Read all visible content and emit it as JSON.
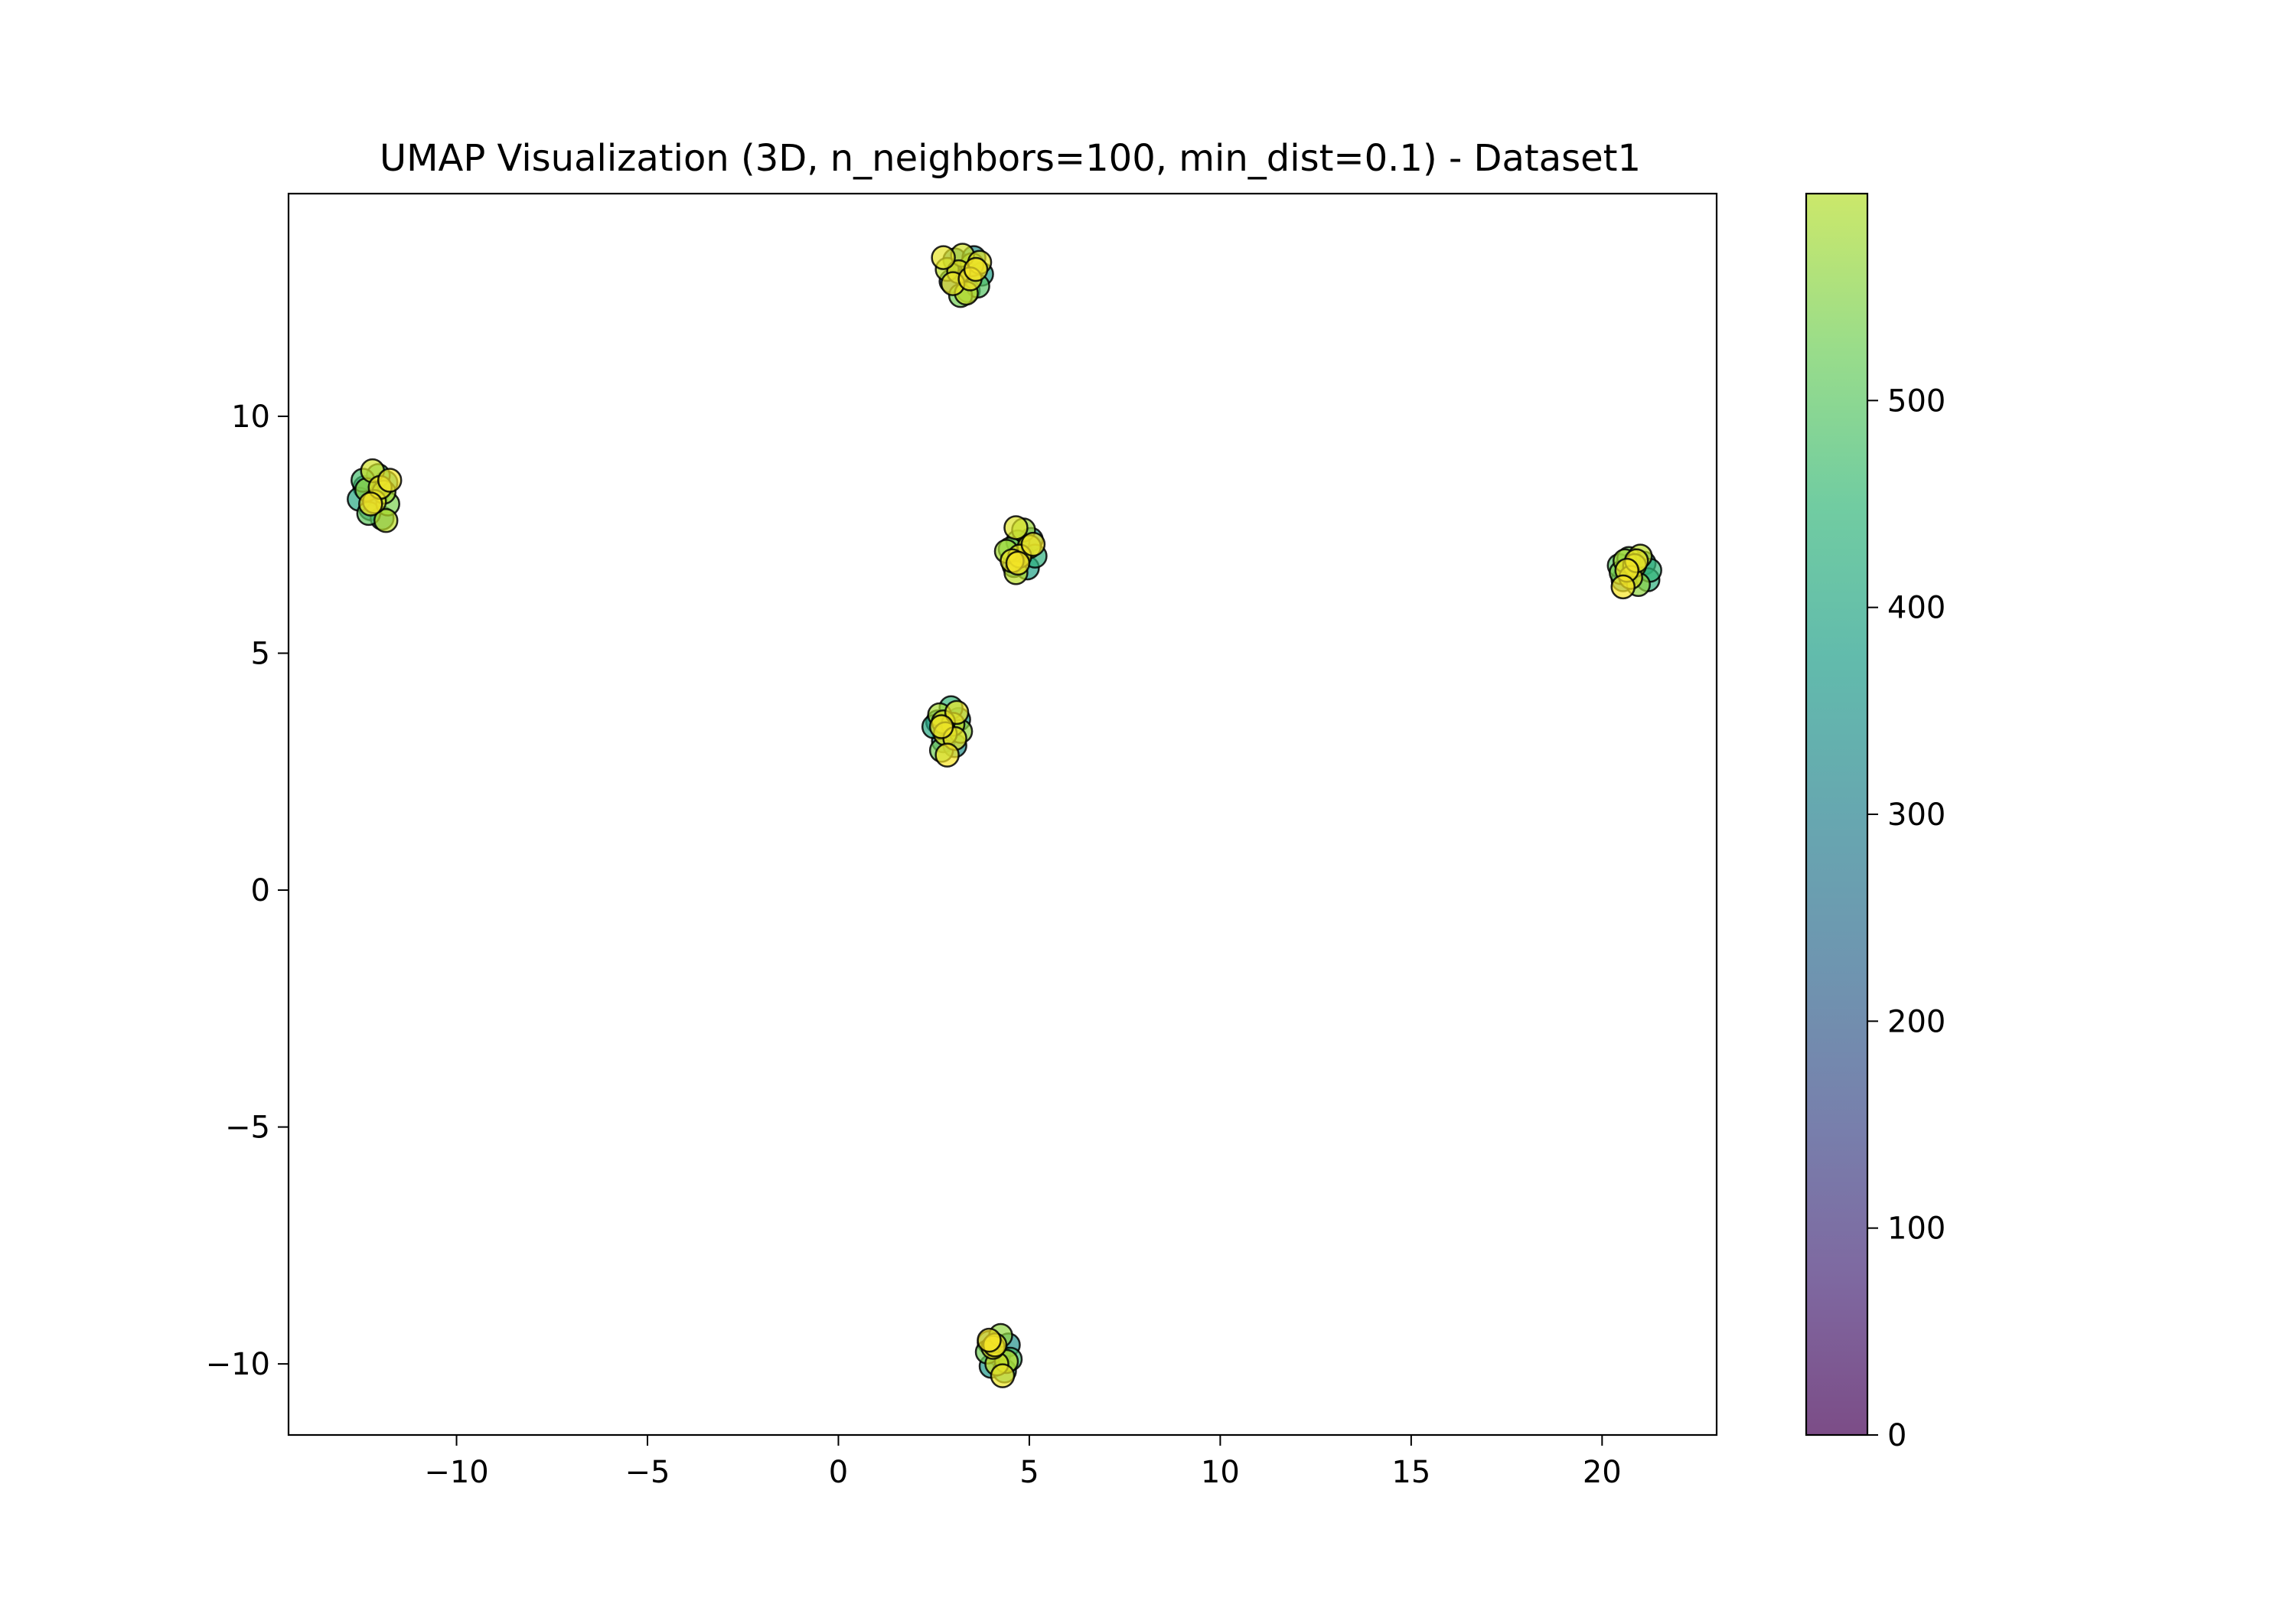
{
  "chart_data": {
    "type": "scatter",
    "title": "UMAP Visualization (3D, n_neighbors=100, min_dist=0.1) - Dataset1",
    "xlabel": "",
    "ylabel": "",
    "xlim": [
      -14.4,
      23.0
    ],
    "ylim": [
      -11.5,
      14.7
    ],
    "x_ticks": [
      -10,
      -5,
      0,
      5,
      10,
      15,
      20
    ],
    "x_tick_labels": [
      "−10",
      "−5",
      "0",
      "5",
      "10",
      "15",
      "20"
    ],
    "y_ticks": [
      -10,
      -5,
      0,
      5,
      10
    ],
    "y_tick_labels": [
      "−10",
      "−5",
      "0",
      "5",
      "10"
    ],
    "grid": false,
    "colormap": "viridis",
    "colorbar": {
      "min": 0,
      "max": 600,
      "ticks": [
        0,
        100,
        200,
        300,
        400,
        500
      ],
      "tick_labels": [
        "0",
        "100",
        "200",
        "300",
        "400",
        "500"
      ]
    },
    "marker": {
      "edge_color": "#000000",
      "alpha": 0.7
    },
    "clusters": [
      {
        "center_x": 3.3,
        "center_y": 13.0
      },
      {
        "center_x": -12.1,
        "center_y": 8.3
      },
      {
        "center_x": 4.8,
        "center_y": 7.1
      },
      {
        "center_x": 20.8,
        "center_y": 6.7
      },
      {
        "center_x": 2.9,
        "center_y": 3.4
      },
      {
        "center_x": 4.2,
        "center_y": -9.8
      }
    ],
    "points": [
      {
        "x": 3.3,
        "y": 13.05,
        "c": 120
      },
      {
        "x": 3.05,
        "y": 13.3,
        "c": 260
      },
      {
        "x": 3.55,
        "y": 13.35,
        "c": 300
      },
      {
        "x": 3.75,
        "y": 13.0,
        "c": 340
      },
      {
        "x": 2.95,
        "y": 12.85,
        "c": 220
      },
      {
        "x": 3.4,
        "y": 12.65,
        "c": 380
      },
      {
        "x": 3.65,
        "y": 12.75,
        "c": 440
      },
      {
        "x": 3.2,
        "y": 12.55,
        "c": 470
      },
      {
        "x": 3.5,
        "y": 13.2,
        "c": 510
      },
      {
        "x": 2.85,
        "y": 13.1,
        "c": 540
      },
      {
        "x": 3.25,
        "y": 13.4,
        "c": 560
      },
      {
        "x": 3.7,
        "y": 13.25,
        "c": 575
      },
      {
        "x": 3.0,
        "y": 12.8,
        "c": 585
      },
      {
        "x": 3.45,
        "y": 12.9,
        "c": 590
      },
      {
        "x": 3.6,
        "y": 13.1,
        "c": 595
      },
      {
        "x": 2.75,
        "y": 13.35,
        "c": 580
      },
      {
        "x": 3.15,
        "y": 13.05,
        "c": 570
      },
      {
        "x": 3.35,
        "y": 12.6,
        "c": 555
      },
      {
        "x": -12.1,
        "y": 8.35,
        "c": 150
      },
      {
        "x": -12.4,
        "y": 8.5,
        "c": 280
      },
      {
        "x": -11.85,
        "y": 8.6,
        "c": 320
      },
      {
        "x": -12.25,
        "y": 8.05,
        "c": 250
      },
      {
        "x": -11.95,
        "y": 7.85,
        "c": 300
      },
      {
        "x": -12.55,
        "y": 8.25,
        "c": 360
      },
      {
        "x": -12.05,
        "y": 8.75,
        "c": 410
      },
      {
        "x": -12.3,
        "y": 7.95,
        "c": 450
      },
      {
        "x": -11.8,
        "y": 8.15,
        "c": 480
      },
      {
        "x": -12.45,
        "y": 8.65,
        "c": 420
      },
      {
        "x": -11.9,
        "y": 8.4,
        "c": 520
      },
      {
        "x": -12.2,
        "y": 8.85,
        "c": 560
      },
      {
        "x": -12.35,
        "y": 8.45,
        "c": 500
      },
      {
        "x": -11.75,
        "y": 8.65,
        "c": 590
      },
      {
        "x": -12.15,
        "y": 8.2,
        "c": 575
      },
      {
        "x": -11.85,
        "y": 7.8,
        "c": 540
      },
      {
        "x": -12.0,
        "y": 8.5,
        "c": 585
      },
      {
        "x": -12.25,
        "y": 8.15,
        "c": 595
      },
      {
        "x": 4.8,
        "y": 7.1,
        "c": 140
      },
      {
        "x": 5.05,
        "y": 7.4,
        "c": 300
      },
      {
        "x": 4.6,
        "y": 6.85,
        "c": 260
      },
      {
        "x": 4.95,
        "y": 6.8,
        "c": 340
      },
      {
        "x": 4.7,
        "y": 7.35,
        "c": 420
      },
      {
        "x": 5.15,
        "y": 7.05,
        "c": 380
      },
      {
        "x": 4.5,
        "y": 7.2,
        "c": 470
      },
      {
        "x": 4.85,
        "y": 7.6,
        "c": 510
      },
      {
        "x": 4.65,
        "y": 6.7,
        "c": 540
      },
      {
        "x": 5.0,
        "y": 7.25,
        "c": 560
      },
      {
        "x": 4.4,
        "y": 7.15,
        "c": 520
      },
      {
        "x": 4.75,
        "y": 7.05,
        "c": 580
      },
      {
        "x": 4.65,
        "y": 7.65,
        "c": 570
      },
      {
        "x": 5.1,
        "y": 7.3,
        "c": 590
      },
      {
        "x": 4.7,
        "y": 6.9,
        "c": 595
      },
      {
        "x": 4.55,
        "y": 6.95,
        "c": 585
      },
      {
        "x": 20.8,
        "y": 6.7,
        "c": 160
      },
      {
        "x": 21.1,
        "y": 6.9,
        "c": 300
      },
      {
        "x": 20.55,
        "y": 6.55,
        "c": 260
      },
      {
        "x": 21.2,
        "y": 6.55,
        "c": 380
      },
      {
        "x": 20.45,
        "y": 6.85,
        "c": 440
      },
      {
        "x": 21.25,
        "y": 6.75,
        "c": 400
      },
      {
        "x": 20.7,
        "y": 7.0,
        "c": 470
      },
      {
        "x": 20.95,
        "y": 6.45,
        "c": 500
      },
      {
        "x": 20.6,
        "y": 6.95,
        "c": 520
      },
      {
        "x": 21.0,
        "y": 7.05,
        "c": 540
      },
      {
        "x": 20.5,
        "y": 6.7,
        "c": 480
      },
      {
        "x": 20.85,
        "y": 6.85,
        "c": 560
      },
      {
        "x": 20.75,
        "y": 6.6,
        "c": 575
      },
      {
        "x": 20.9,
        "y": 6.95,
        "c": 585
      },
      {
        "x": 20.65,
        "y": 6.75,
        "c": 590
      },
      {
        "x": 20.55,
        "y": 6.4,
        "c": 595
      },
      {
        "x": 2.9,
        "y": 3.4,
        "c": 130
      },
      {
        "x": 2.6,
        "y": 3.55,
        "c": 280
      },
      {
        "x": 3.15,
        "y": 3.6,
        "c": 320
      },
      {
        "x": 2.75,
        "y": 3.15,
        "c": 250
      },
      {
        "x": 3.05,
        "y": 3.05,
        "c": 300
      },
      {
        "x": 2.5,
        "y": 3.45,
        "c": 360
      },
      {
        "x": 2.95,
        "y": 3.85,
        "c": 400
      },
      {
        "x": 2.7,
        "y": 2.95,
        "c": 470
      },
      {
        "x": 3.2,
        "y": 3.35,
        "c": 500
      },
      {
        "x": 2.65,
        "y": 3.7,
        "c": 520
      },
      {
        "x": 3.0,
        "y": 3.5,
        "c": 550
      },
      {
        "x": 2.8,
        "y": 3.3,
        "c": 570
      },
      {
        "x": 3.1,
        "y": 3.75,
        "c": 585
      },
      {
        "x": 2.7,
        "y": 3.45,
        "c": 590
      },
      {
        "x": 2.85,
        "y": 2.85,
        "c": 595
      },
      {
        "x": 3.05,
        "y": 3.2,
        "c": 580
      },
      {
        "x": 2.75,
        "y": 3.55,
        "c": 565
      },
      {
        "x": 4.2,
        "y": -9.8,
        "c": 150
      },
      {
        "x": 4.45,
        "y": -9.6,
        "c": 300
      },
      {
        "x": 3.95,
        "y": -9.55,
        "c": 260
      },
      {
        "x": 4.0,
        "y": -10.05,
        "c": 320
      },
      {
        "x": 4.35,
        "y": -10.15,
        "c": 380
      },
      {
        "x": 4.5,
        "y": -9.9,
        "c": 420
      },
      {
        "x": 3.9,
        "y": -9.75,
        "c": 470
      },
      {
        "x": 4.25,
        "y": -9.4,
        "c": 500
      },
      {
        "x": 4.4,
        "y": -9.95,
        "c": 540
      },
      {
        "x": 4.15,
        "y": -10.0,
        "c": 560
      },
      {
        "x": 4.05,
        "y": -9.65,
        "c": 575
      },
      {
        "x": 4.3,
        "y": -10.25,
        "c": 585
      },
      {
        "x": 4.1,
        "y": -9.6,
        "c": 590
      },
      {
        "x": 3.95,
        "y": -9.5,
        "c": 595
      }
    ]
  }
}
